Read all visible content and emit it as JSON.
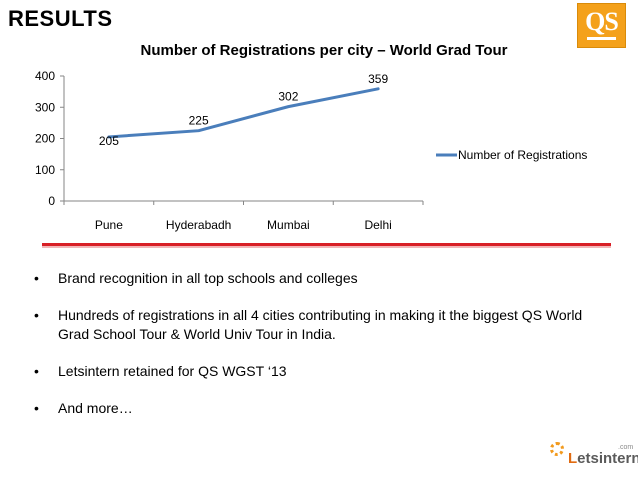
{
  "heading": "RESULTS",
  "logo_text": "QS",
  "chart_data": {
    "type": "line",
    "title": "Number of Registrations per city – World Grad Tour",
    "categories": [
      "Pune",
      "Hyderabadh",
      "Mumbai",
      "Delhi"
    ],
    "series": [
      {
        "name": "Number of Registrations",
        "values": [
          205,
          225,
          302,
          359
        ],
        "color": "#4a7ebb"
      }
    ],
    "ylim": [
      0,
      400
    ],
    "yticks": [
      0,
      100,
      200,
      300,
      400
    ],
    "grid": false,
    "legend": "right",
    "data_labels": true
  },
  "bullets": [
    "Brand recognition in all top schools and colleges",
    "Hundreds of registrations in all 4 cities contributing in making it the biggest QS World Grad School Tour & World Univ Tour in India.",
    "Letsintern retained for QS WGST ‘13",
    "And more…"
  ],
  "bullet_glyph": "•",
  "brand": {
    "prefix": "L",
    "text": "etsintern",
    "suffix": ".com",
    "color": "#e06b12"
  }
}
